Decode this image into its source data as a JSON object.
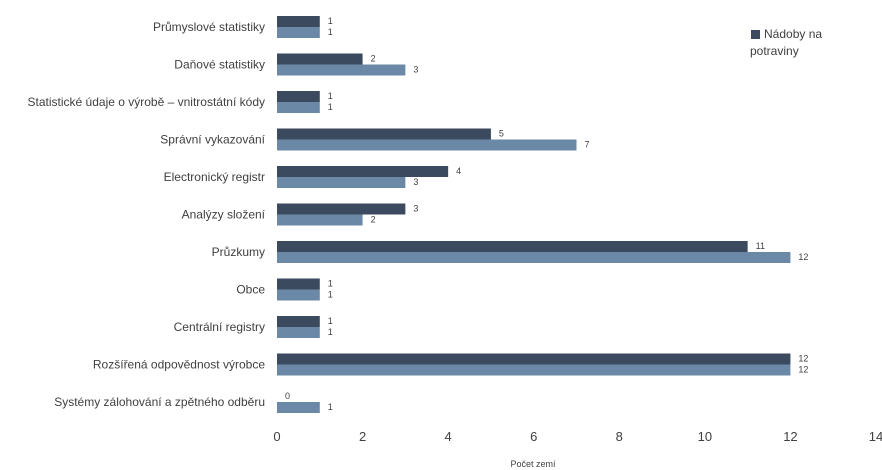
{
  "chart_data": {
    "type": "bar",
    "orientation": "horizontal",
    "categories": [
      "Průmyslové statistiky",
      "Daňové statistiky",
      "Statistické údaje o výrobě – vnitrostátní kódy",
      "Správní vykazování",
      "Electronický registr",
      "Analýzy složení",
      "Průzkumy",
      "Obce",
      "Centrální registry",
      "Rozšířená odpovědnost výrobce",
      "Systémy zálohování a zpětného odběru"
    ],
    "series": [
      {
        "name": "",
        "color": "#3b4a5e",
        "values": [
          1,
          2,
          1,
          5,
          4,
          3,
          11,
          1,
          1,
          12,
          0
        ]
      },
      {
        "name": "",
        "color": "#6b89a6",
        "values": [
          1,
          3,
          1,
          7,
          3,
          2,
          12,
          1,
          1,
          12,
          1
        ]
      }
    ],
    "xlabel": "Počet zemí",
    "xlim": [
      0,
      14
    ],
    "xticks": [
      "0",
      "2",
      "4",
      "6",
      "8",
      "10",
      "12",
      "14"
    ],
    "grid": false,
    "legend": {
      "position": "top-right",
      "line1": "Nádoby na",
      "line2": "potraviny"
    }
  }
}
